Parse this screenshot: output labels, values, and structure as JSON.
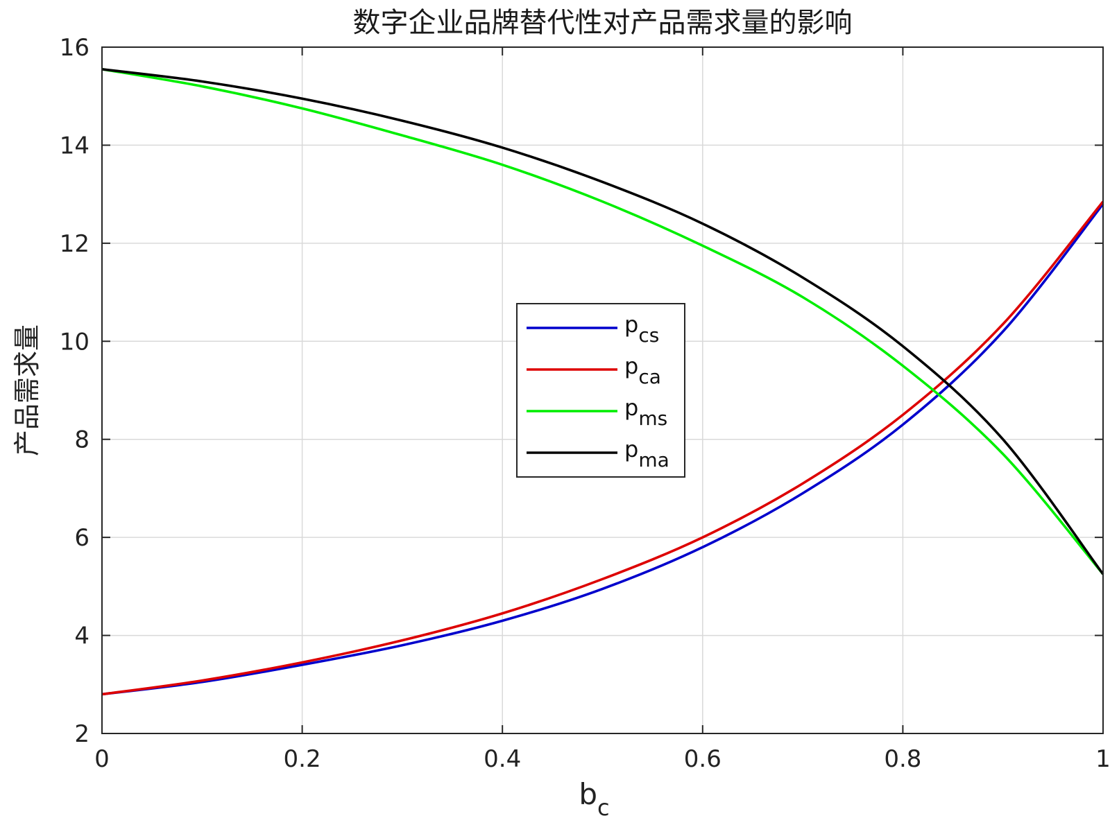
{
  "chart_data": {
    "type": "line",
    "title": "数字企业品牌替代性对产品需求量的影响",
    "xlabel_main": "b",
    "xlabel_sub": "c",
    "ylabel": "产品需求量",
    "xlim": [
      0,
      1
    ],
    "ylim": [
      2,
      16
    ],
    "xticks": [
      0,
      0.2,
      0.4,
      0.6,
      0.8,
      1
    ],
    "xtick_labels": [
      "0",
      "0.2",
      "0.4",
      "0.6",
      "0.8",
      "1"
    ],
    "yticks": [
      2,
      4,
      6,
      8,
      10,
      12,
      14,
      16
    ],
    "ytick_labels": [
      "2",
      "4",
      "6",
      "8",
      "10",
      "12",
      "14",
      "16"
    ],
    "grid": true,
    "legend_position": "center",
    "x": [
      0,
      0.1,
      0.2,
      0.3,
      0.4,
      0.5,
      0.6,
      0.7,
      0.8,
      0.9,
      1.0
    ],
    "series": [
      {
        "name_main": "p",
        "name_sub": "cs",
        "color": "#0000cc",
        "values": [
          2.8,
          3.05,
          3.4,
          3.8,
          4.3,
          4.95,
          5.8,
          6.9,
          8.3,
          10.2,
          12.8
        ]
      },
      {
        "name_main": "p",
        "name_sub": "ca",
        "color": "#dd0000",
        "values": [
          2.8,
          3.08,
          3.45,
          3.9,
          4.45,
          5.15,
          6.0,
          7.1,
          8.5,
          10.35,
          12.85
        ]
      },
      {
        "name_main": "p",
        "name_sub": "ms",
        "color": "#00ee00",
        "values": [
          15.55,
          15.2,
          14.75,
          14.2,
          13.6,
          12.85,
          11.95,
          10.9,
          9.5,
          7.7,
          5.25
        ]
      },
      {
        "name_main": "p",
        "name_sub": "ma",
        "color": "#000000",
        "values": [
          15.55,
          15.3,
          14.95,
          14.5,
          13.95,
          13.25,
          12.4,
          11.3,
          9.9,
          8.0,
          5.25
        ]
      }
    ]
  }
}
